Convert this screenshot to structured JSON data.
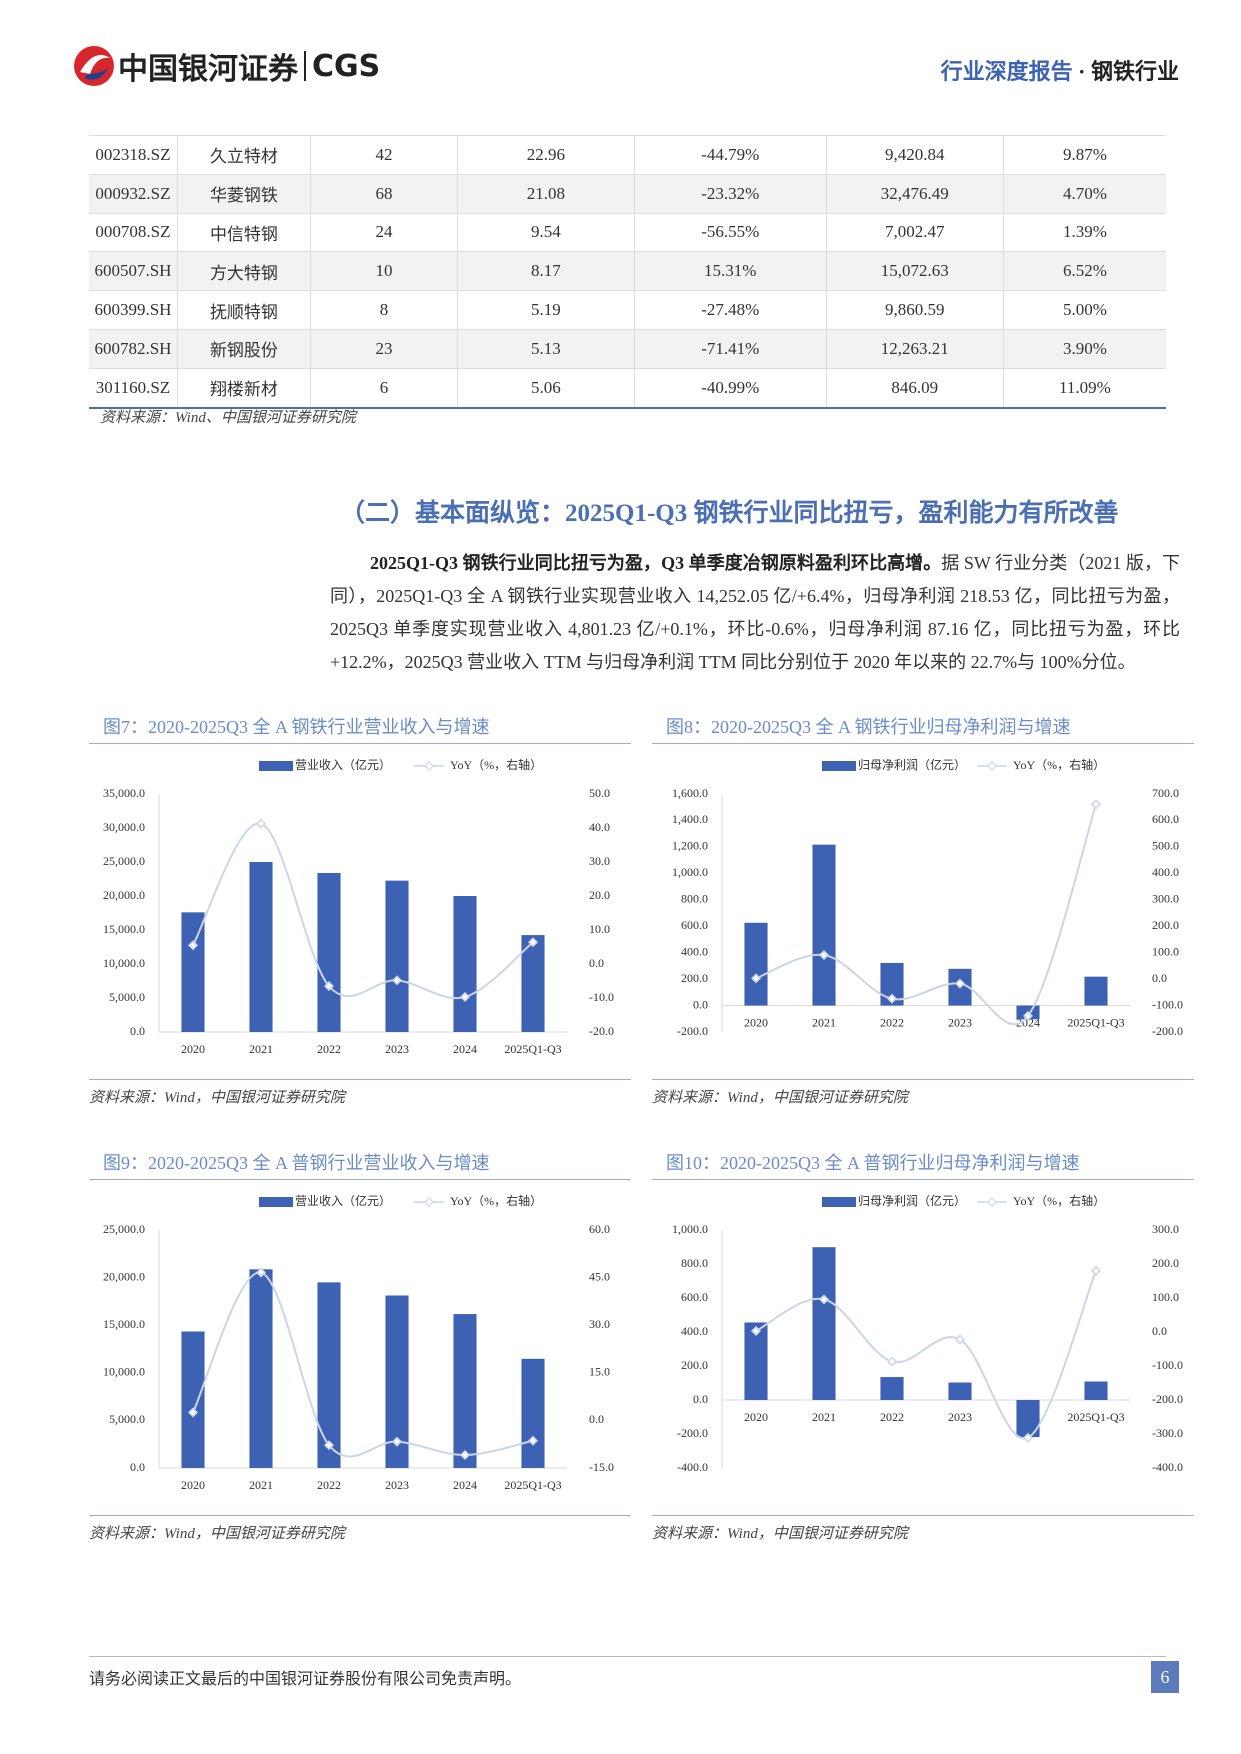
{
  "header": {
    "logo_cn": "中国银河证券",
    "logo_en": "CGS",
    "report_type": "行业深度报告",
    "separator": "·",
    "industry": "钢铁行业"
  },
  "table": {
    "rows": [
      [
        "002318.SZ",
        "久立特材",
        "42",
        "22.96",
        "-44.79%",
        "9,420.84",
        "9.87%"
      ],
      [
        "000932.SZ",
        "华菱钢铁",
        "68",
        "21.08",
        "-23.32%",
        "32,476.49",
        "4.70%"
      ],
      [
        "000708.SZ",
        "中信特钢",
        "24",
        "9.54",
        "-56.55%",
        "7,002.47",
        "1.39%"
      ],
      [
        "600507.SH",
        "方大特钢",
        "10",
        "8.17",
        "15.31%",
        "15,072.63",
        "6.52%"
      ],
      [
        "600399.SH",
        "抚顺特钢",
        "8",
        "5.19",
        "-27.48%",
        "9,860.59",
        "5.00%"
      ],
      [
        "600782.SH",
        "新钢股份",
        "23",
        "5.13",
        "-71.41%",
        "12,263.21",
        "3.90%"
      ],
      [
        "301160.SZ",
        "翔楼新材",
        "6",
        "5.06",
        "-40.99%",
        "846.09",
        "11.09%"
      ]
    ],
    "source": "资料来源：Wind、中国银河证券研究院"
  },
  "section": {
    "heading": "（二）基本面纵览：2025Q1-Q3 钢铁行业同比扭亏，盈利能力有所改善",
    "paragraph": {
      "lead": "2025Q1-Q3 钢铁行业同比扭亏为盈，Q3 单季度冶钢原料盈利环比高增。",
      "body": "据 SW 行业分类（2021 版，下同），2025Q1-Q3 全 A 钢铁行业实现营业收入 14,252.05 亿/+6.4%，归母净利润 218.53 亿，同比扭亏为盈，2025Q3 单季度实现营业收入 4,801.23 亿/+0.1%，环比-0.6%，归母净利润 87.16 亿，同比扭亏为盈，环比+12.2%，2025Q3 营业收入 TTM 与归母净利润 TTM 同比分别位于 2020 年以来的 22.7%与 100%分位。"
    }
  },
  "chart_data": [
    {
      "type": "bar",
      "title": "图7：2020-2025Q3 全 A 钢铁行业营业收入与增速",
      "source": "资料来源：Wind，中国银河证券研究院",
      "categories": [
        "2020",
        "2021",
        "2022",
        "2023",
        "2024",
        "2025Q1-Q3"
      ],
      "series": [
        {
          "name": "营业收入（亿元）",
          "color": "#3d62b3",
          "values": [
            17600,
            25000,
            23390,
            22260,
            20000,
            14252.05
          ]
        },
        {
          "name": "YoY（%，右轴）",
          "color": "#cbd5e8",
          "axis": "y2",
          "values": [
            5.5,
            41.3,
            -6.5,
            -4.8,
            -9.7,
            6.4
          ]
        }
      ],
      "ylim": [
        0,
        35000
      ],
      "yticks": [
        {
          "value": 0,
          "label": "0.0"
        },
        {
          "value": 5000,
          "label": "5,000.0"
        },
        {
          "value": 10000,
          "label": "10,000.0"
        },
        {
          "value": 15000,
          "label": "15,000.0"
        },
        {
          "value": 20000,
          "label": "20,000.0"
        },
        {
          "value": 25000,
          "label": "25,000.0"
        },
        {
          "value": 30000,
          "label": "30,000.0"
        },
        {
          "value": 35000,
          "label": "35,000.0"
        }
      ],
      "y2lim": [
        -20,
        50
      ],
      "y2ticks": [
        {
          "value": -20,
          "label": "-20.0"
        },
        {
          "value": -10,
          "label": "-10.0"
        },
        {
          "value": 0,
          "label": "0.0"
        },
        {
          "value": 10,
          "label": "10.0"
        },
        {
          "value": 20,
          "label": "20.0"
        },
        {
          "value": 30,
          "label": "30.0"
        },
        {
          "value": 40,
          "label": "40.0"
        },
        {
          "value": 50,
          "label": "50.0"
        }
      ]
    },
    {
      "type": "bar",
      "title": "图8：2020-2025Q3 全 A 钢铁行业归母净利润与增速",
      "source": "资料来源：Wind，中国银河证券研究院",
      "categories": [
        "2020",
        "2021",
        "2022",
        "2023",
        "2024",
        "2025Q1-Q3"
      ],
      "series": [
        {
          "name": "归母净利润（亿元）",
          "color": "#3d62b3",
          "values": [
            626,
            1217,
            322,
            278,
            -104,
            218.53
          ]
        },
        {
          "name": "YoY（%，右轴）",
          "color": "#cbd5e8",
          "axis": "y2",
          "values": [
            3,
            91,
            -74,
            -17,
            -139,
            661
          ]
        }
      ],
      "ylim": [
        -200,
        1600
      ],
      "yticks": [
        {
          "value": -200,
          "label": "-200.0"
        },
        {
          "value": 0,
          "label": "0.0"
        },
        {
          "value": 200,
          "label": "200.0"
        },
        {
          "value": 400,
          "label": "400.0"
        },
        {
          "value": 600,
          "label": "600.0"
        },
        {
          "value": 800,
          "label": "800.0"
        },
        {
          "value": 1000,
          "label": "1,000.0"
        },
        {
          "value": 1200,
          "label": "1,200.0"
        },
        {
          "value": 1400,
          "label": "1,400.0"
        },
        {
          "value": 1600,
          "label": "1,600.0"
        }
      ],
      "y2lim": [
        -200,
        700
      ],
      "y2ticks": [
        {
          "value": -200,
          "label": "-200.0"
        },
        {
          "value": -100,
          "label": "-100.0"
        },
        {
          "value": 0,
          "label": "0.0"
        },
        {
          "value": 100,
          "label": "100.0"
        },
        {
          "value": 200,
          "label": "200.0"
        },
        {
          "value": 300,
          "label": "300.0"
        },
        {
          "value": 400,
          "label": "400.0"
        },
        {
          "value": 500,
          "label": "500.0"
        },
        {
          "value": 600,
          "label": "600.0"
        },
        {
          "value": 700,
          "label": "700.0"
        }
      ]
    },
    {
      "type": "bar",
      "title": "图9：2020-2025Q3 全 A 普钢行业营业收入与增速",
      "source": "资料来源：Wind，中国银河证券研究院",
      "categories": [
        "2020",
        "2021",
        "2022",
        "2023",
        "2024",
        "2025Q1-Q3"
      ],
      "series": [
        {
          "name": "营业收入（亿元）",
          "color": "#3d62b3",
          "values": [
            14340,
            20870,
            19500,
            18120,
            16170,
            11470
          ]
        },
        {
          "name": "YoY（%，右轴）",
          "color": "#cbd5e8",
          "axis": "y2",
          "values": [
            2.5,
            46.6,
            -7.8,
            -6.7,
            -10.9,
            -6.4
          ]
        }
      ],
      "ylim": [
        0,
        25000
      ],
      "yticks": [
        {
          "value": 0,
          "label": "0.0"
        },
        {
          "value": 5000,
          "label": "5,000.0"
        },
        {
          "value": 10000,
          "label": "10,000.0"
        },
        {
          "value": 15000,
          "label": "15,000.0"
        },
        {
          "value": 20000,
          "label": "20,000.0"
        },
        {
          "value": 25000,
          "label": "25,000.0"
        }
      ],
      "y2lim": [
        -15,
        60
      ],
      "y2ticks": [
        {
          "value": -15,
          "label": "-15.0"
        },
        {
          "value": 0,
          "label": "0.0"
        },
        {
          "value": 15,
          "label": "15.0"
        },
        {
          "value": 30,
          "label": "30.0"
        },
        {
          "value": 45,
          "label": "45.0"
        },
        {
          "value": 60,
          "label": "60.0"
        }
      ]
    },
    {
      "type": "bar",
      "title": "图10：2020-2025Q3 全 A 普钢行业归母净利润与增速",
      "source": "资料来源：Wind，中国银河证券研究院",
      "categories": [
        "2020",
        "2021",
        "2022",
        "2023",
        "2024",
        "2025Q1-Q3"
      ],
      "series": [
        {
          "name": "归母净利润（亿元）",
          "color": "#3d62b3",
          "values": [
            456,
            899,
            135,
            103,
            -218,
            109
          ]
        },
        {
          "name": "YoY（%，右轴）",
          "color": "#cbd5e8",
          "axis": "y2",
          "values": [
            3,
            96,
            -87,
            -22,
            -311,
            180
          ]
        }
      ],
      "ylim": [
        -400,
        1000
      ],
      "yticks": [
        {
          "value": -400,
          "label": "-400.0"
        },
        {
          "value": -200,
          "label": "-200.0"
        },
        {
          "value": 0,
          "label": "0.0"
        },
        {
          "value": 200,
          "label": "200.0"
        },
        {
          "value": 400,
          "label": "400.0"
        },
        {
          "value": 600,
          "label": "600.0"
        },
        {
          "value": 800,
          "label": "800.0"
        },
        {
          "value": 1000,
          "label": "1,000.0"
        }
      ],
      "y2lim": [
        -400,
        300
      ],
      "y2ticks": [
        {
          "value": -400,
          "label": "-400.0"
        },
        {
          "value": -300,
          "label": "-300.0"
        },
        {
          "value": -200,
          "label": "-200.0"
        },
        {
          "value": -100,
          "label": "-100.0"
        },
        {
          "value": 0,
          "label": "0.0"
        },
        {
          "value": 100,
          "label": "100.0"
        },
        {
          "value": 200,
          "label": "200.0"
        },
        {
          "value": 300,
          "label": "300.0"
        }
      ]
    }
  ],
  "footer": {
    "disclaimer": "请务必阅读正文最后的中国银河证券股份有限公司免责声明。",
    "page": "6"
  }
}
